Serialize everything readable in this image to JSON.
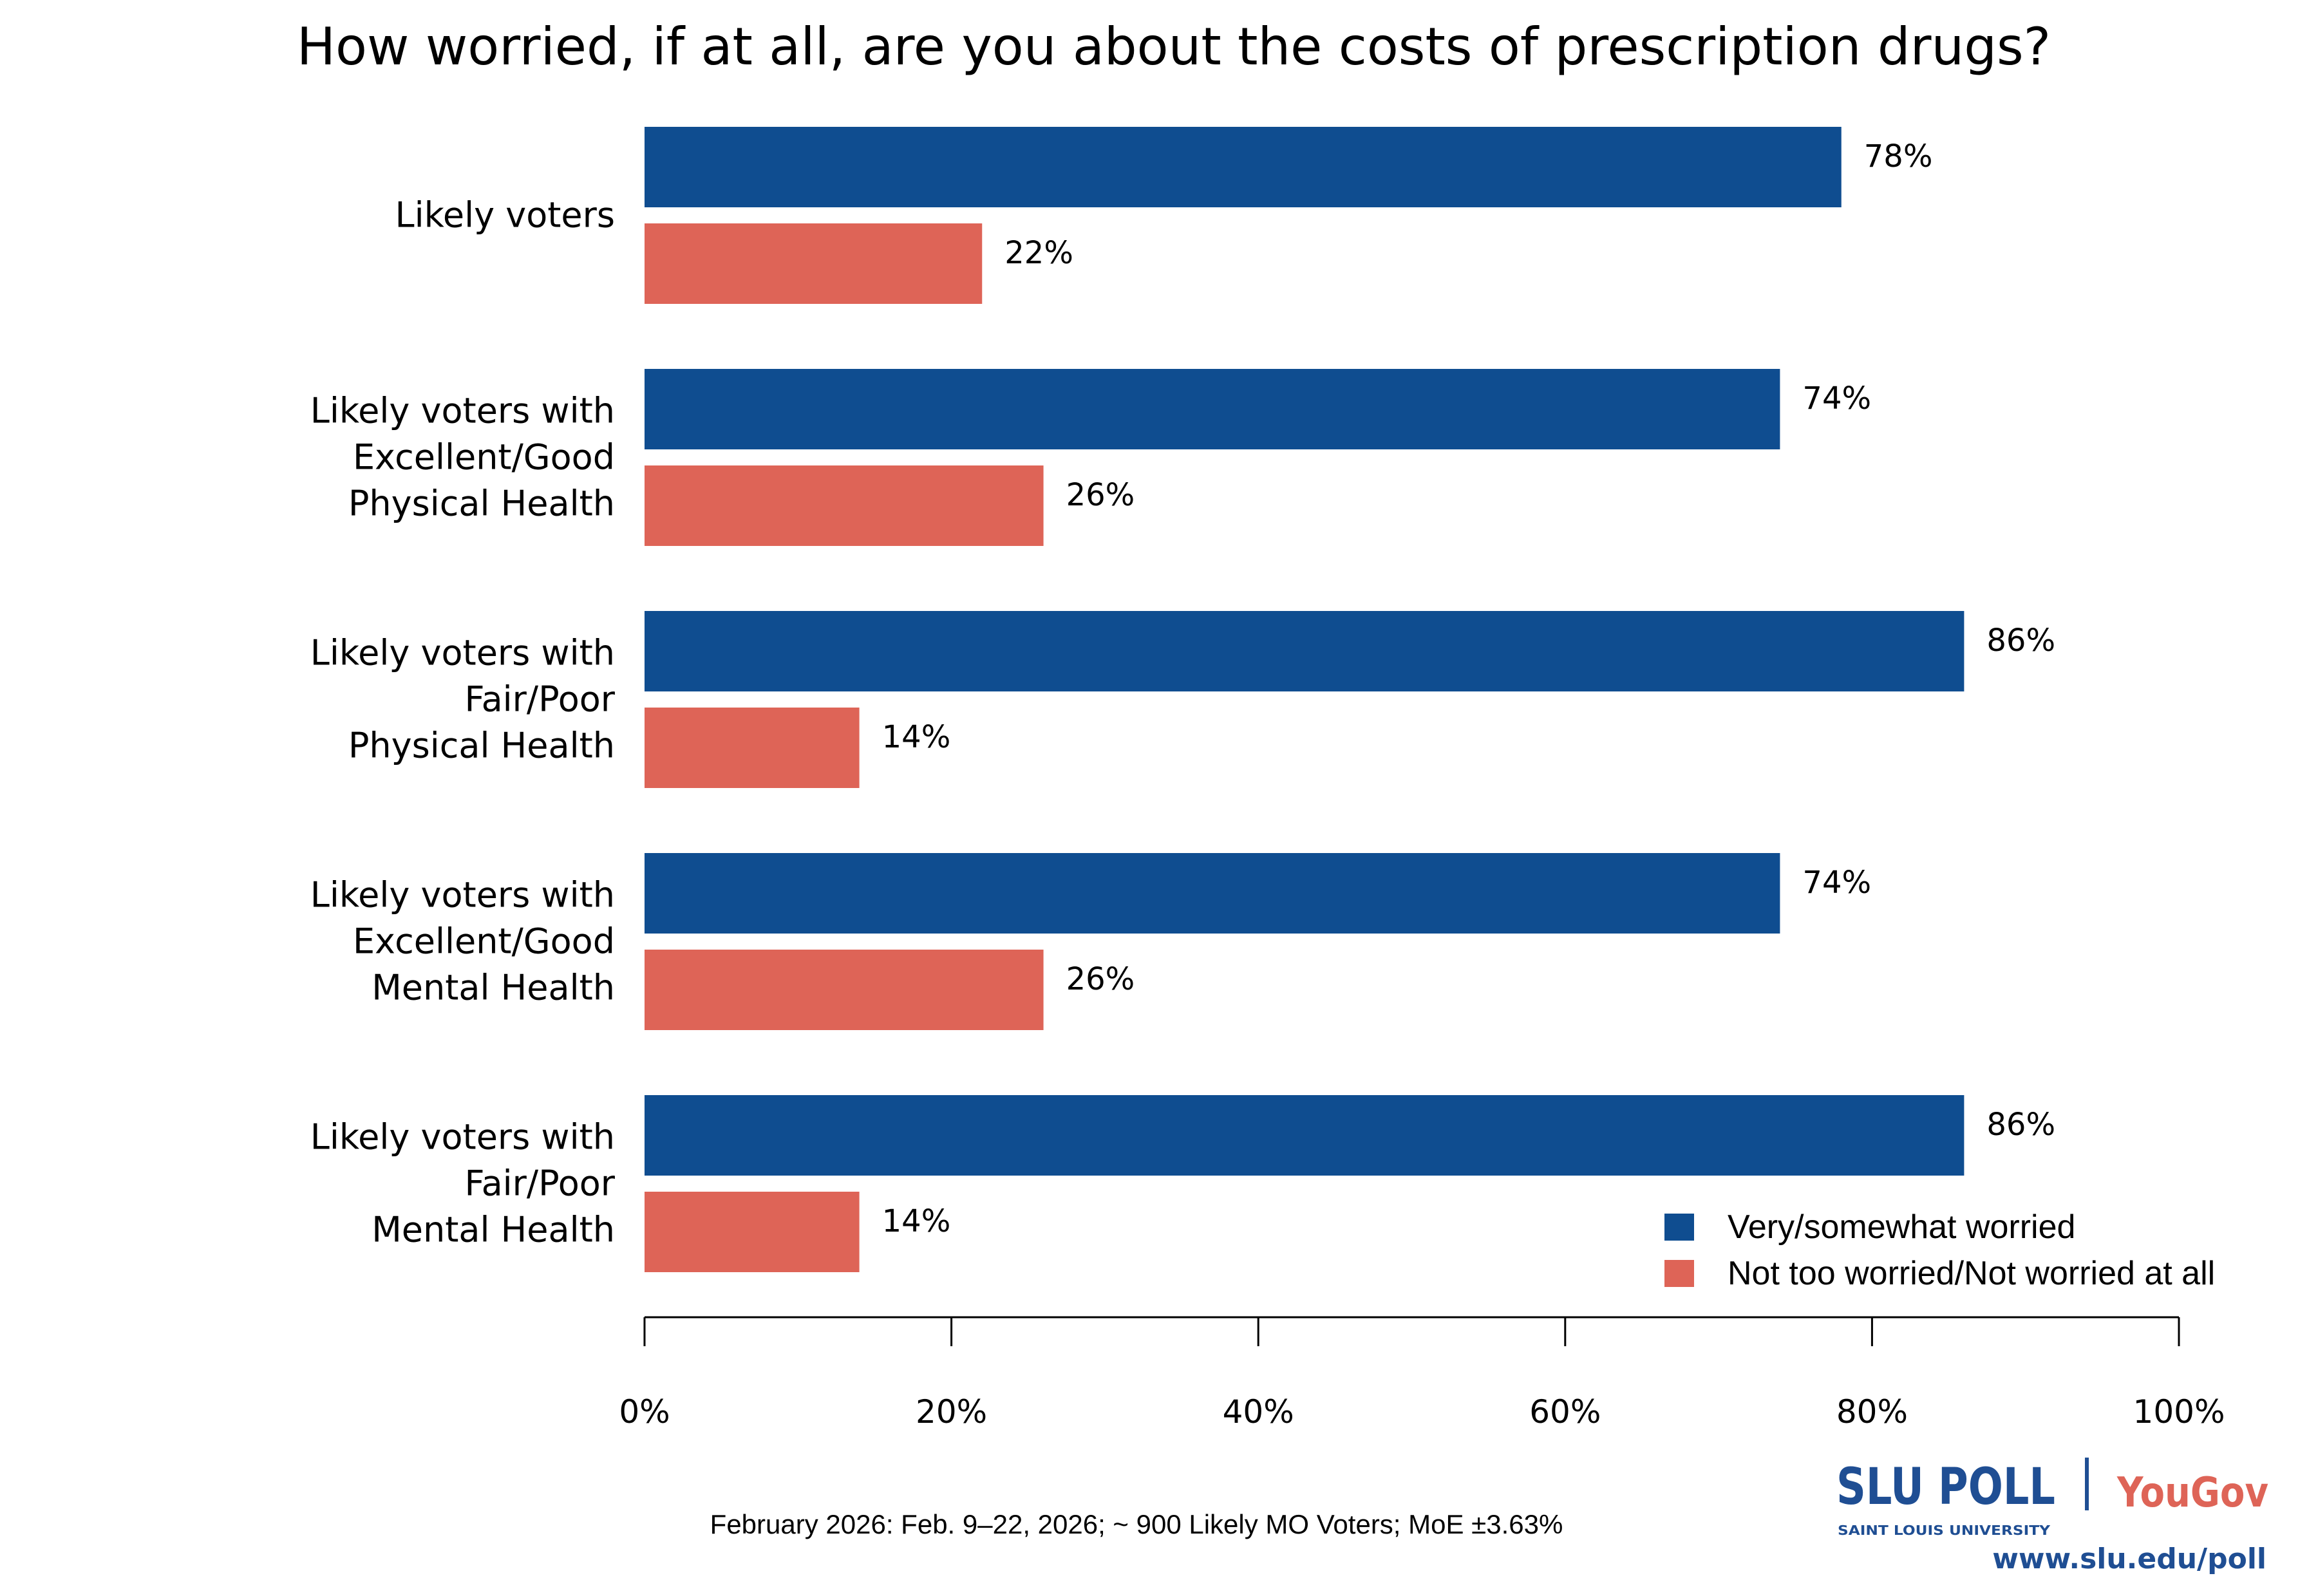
{
  "chart_data": {
    "type": "bar",
    "orientation": "horizontal",
    "title": "How worried, if at all, are you about the costs of prescription drugs?",
    "categories": [
      [
        "Likely voters"
      ],
      [
        "Likely voters with",
        "Excellent/Good",
        "Physical Health"
      ],
      [
        "Likely voters with",
        "Fair/Poor",
        "Physical Health"
      ],
      [
        "Likely voters with",
        "Excellent/Good",
        "Mental Health"
      ],
      [
        "Likely voters with",
        "Fair/Poor",
        "Mental Health"
      ]
    ],
    "series": [
      {
        "name": "Very/somewhat worried",
        "color": "#0F4D90",
        "values": [
          78,
          74,
          86,
          74,
          86
        ]
      },
      {
        "name": "Not too worried/Not worried at all",
        "color": "#DE6457",
        "values": [
          22,
          26,
          14,
          26,
          14
        ]
      }
    ],
    "value_suffix": "%",
    "xlim": [
      0,
      100
    ],
    "xticks": [
      0,
      20,
      40,
      60,
      80,
      100
    ],
    "xtick_labels": [
      "0%",
      "20%",
      "40%",
      "60%",
      "80%",
      "100%"
    ],
    "grid": false,
    "legend_position": "bottom-right"
  },
  "footer": {
    "note": "February 2026: Feb. 9–22, 2026; ~ 900 Likely MO Voters; MoE ±3.63%",
    "logo_slu": "SLU POLL",
    "logo_slu_sub": "SAINT LOUIS UNIVERSITY",
    "logo_yougov": "YouGov",
    "url": "www.slu.edu/poll"
  }
}
